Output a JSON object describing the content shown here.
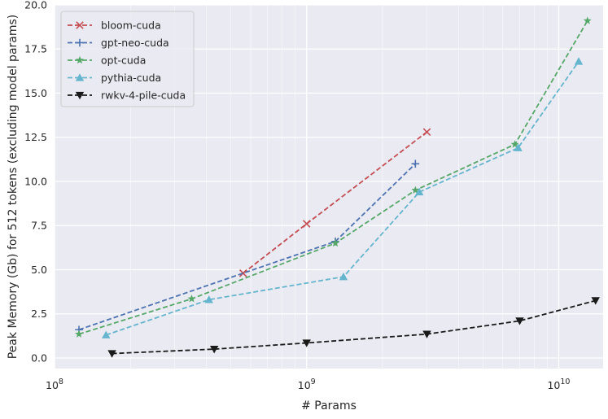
{
  "chart_data": {
    "type": "line",
    "xlabel": "# Params",
    "ylabel": "Peak Memory (Gb) for 512 tokens (excluding model params)",
    "xscale": "log",
    "xlim": [
      100000000,
      15000000000
    ],
    "ylim": [
      -0.6,
      20.0
    ],
    "x_ticks": [
      {
        "value": 100000000,
        "base": "10",
        "exp": "8"
      },
      {
        "value": 1000000000,
        "base": "10",
        "exp": "9"
      },
      {
        "value": 10000000000,
        "base": "10",
        "exp": "10"
      }
    ],
    "y_ticks": [
      {
        "value": 0.0,
        "label": "0.0"
      },
      {
        "value": 2.5,
        "label": "2.5"
      },
      {
        "value": 5.0,
        "label": "5.0"
      },
      {
        "value": 7.5,
        "label": "7.5"
      },
      {
        "value": 10.0,
        "label": "10.0"
      },
      {
        "value": 12.5,
        "label": "12.5"
      },
      {
        "value": 15.0,
        "label": "15.0"
      },
      {
        "value": 17.5,
        "label": "17.5"
      },
      {
        "value": 20.0,
        "label": "20.0"
      }
    ],
    "grid": true,
    "background": "#eaeaf2",
    "legend_position": "top-left",
    "series": [
      {
        "name": "bloom-cuda",
        "color": "#c44e52",
        "marker": "x",
        "x": [
          560000000,
          1000000000,
          3000000000
        ],
        "y": [
          4.8,
          7.6,
          12.8
        ]
      },
      {
        "name": "gpt-neo-cuda",
        "color": "#4c72b0",
        "marker": "+",
        "x": [
          125000000,
          1300000000,
          2700000000
        ],
        "y": [
          1.6,
          6.6,
          11.0
        ]
      },
      {
        "name": "opt-cuda",
        "color": "#55a868",
        "marker": "star",
        "x": [
          125000000,
          350000000,
          1300000000,
          2700000000,
          6700000000,
          13000000000
        ],
        "y": [
          1.35,
          3.35,
          6.5,
          9.5,
          12.1,
          19.1
        ]
      },
      {
        "name": "pythia-cuda",
        "color": "#64b5cd",
        "marker": "triangle-up",
        "x": [
          160000000,
          410000000,
          1400000000,
          2800000000,
          6900000000,
          12000000000
        ],
        "y": [
          1.3,
          3.3,
          4.6,
          9.4,
          11.9,
          16.8
        ]
      },
      {
        "name": "rwkv-4-pile-cuda",
        "color": "#1a1a1a",
        "marker": "triangle-down",
        "x": [
          169000000,
          430000000,
          1000000000,
          3000000000,
          7000000000,
          14000000000
        ],
        "y": [
          0.25,
          0.5,
          0.85,
          1.35,
          2.1,
          3.25
        ]
      }
    ]
  }
}
